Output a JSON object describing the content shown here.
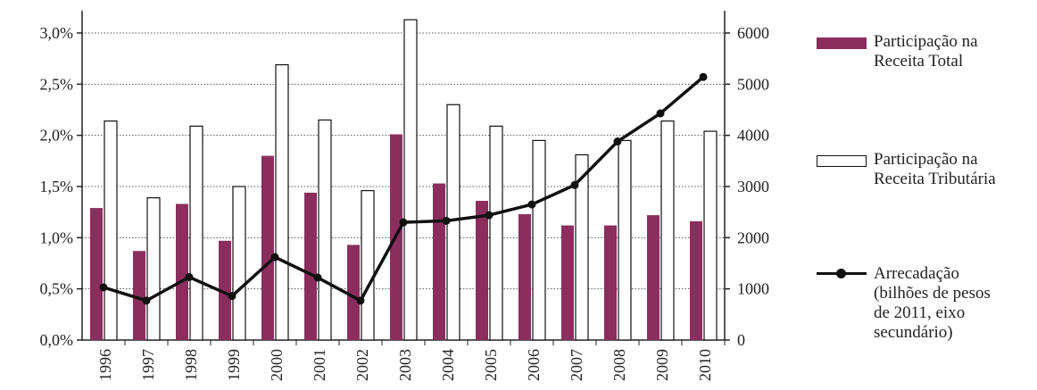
{
  "chart_data": {
    "type": "bar",
    "title": "",
    "xlabel": "",
    "ylabel": "",
    "categories": [
      "1996",
      "1997",
      "1998",
      "1999",
      "2000",
      "2001",
      "2002",
      "2003",
      "2004",
      "2005",
      "2006",
      "2007",
      "2008",
      "2009",
      "2010"
    ],
    "series": [
      {
        "name": "Participação na\nReceita Total",
        "kind": "bar",
        "axis": "left",
        "color": "#8b2e5e",
        "values": [
          1.29,
          0.87,
          1.33,
          0.97,
          1.8,
          1.44,
          0.93,
          2.01,
          1.53,
          1.36,
          1.23,
          1.12,
          1.12,
          1.22,
          1.16
        ]
      },
      {
        "name": "Participação na\nReceita Tributária",
        "kind": "bar",
        "axis": "left",
        "color": "#ffffff",
        "values": [
          2.14,
          1.39,
          2.09,
          1.5,
          2.69,
          2.15,
          1.46,
          3.13,
          2.3,
          2.09,
          1.95,
          1.81,
          1.95,
          2.14,
          2.04
        ]
      },
      {
        "name": "Arrecadação\n(bilhões de pesos\nde 2011, eixo\nsecundário)",
        "kind": "line",
        "axis": "right",
        "color": "#111111",
        "values": [
          1030,
          770,
          1230,
          860,
          1620,
          1220,
          770,
          2300,
          2330,
          2440,
          2650,
          3030,
          3880,
          4430,
          5140
        ]
      }
    ],
    "y_left": {
      "range": [
        0,
        3.0
      ],
      "ticks": [
        0,
        0.5,
        1.0,
        1.5,
        2.0,
        2.5,
        3.0
      ],
      "tick_labels": [
        "0,0%",
        "0,5%",
        "1,0%",
        "1,5%",
        "2,0%",
        "2,5%",
        "3,0%"
      ]
    },
    "y_right": {
      "range": [
        0,
        6000
      ],
      "ticks": [
        0,
        1000,
        2000,
        3000,
        4000,
        5000,
        6000
      ],
      "tick_labels": [
        "0",
        "1000",
        "2000",
        "3000",
        "4000",
        "5000",
        "6000"
      ]
    },
    "grid": "horizontal dotted",
    "legend_position": "right"
  }
}
